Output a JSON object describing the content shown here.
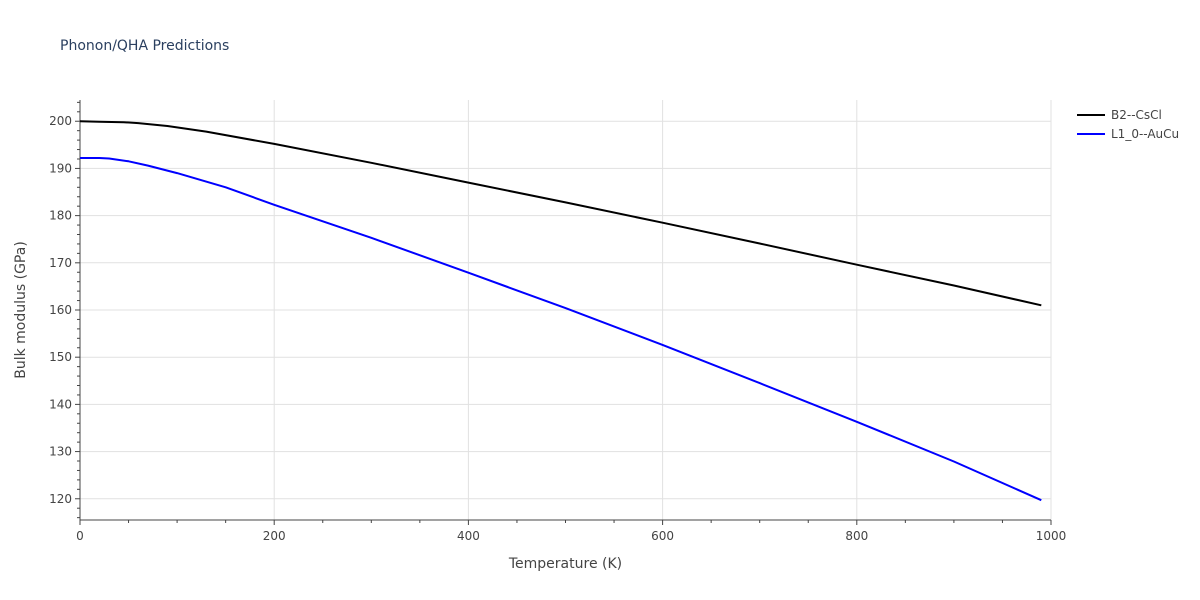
{
  "chart_data": {
    "type": "line",
    "title": "Phonon/QHA Predictions",
    "xlabel": "Temperature (K)",
    "ylabel": "Bulk modulus (GPa)",
    "xlim": [
      0,
      1000
    ],
    "ylim": [
      115.5,
      204.5
    ],
    "xticks": [
      0,
      200,
      400,
      600,
      800,
      1000
    ],
    "yticks": [
      120,
      130,
      140,
      150,
      160,
      170,
      180,
      190,
      200
    ],
    "grid": true,
    "legend_position": "top-right",
    "series": [
      {
        "name": "B2--CsCl",
        "color": "#000000",
        "x": [
          0,
          20,
          45,
          60,
          90,
          130,
          200,
          300,
          400,
          500,
          600,
          700,
          800,
          900,
          990
        ],
        "y": [
          200.0,
          199.9,
          199.8,
          199.6,
          199.0,
          197.8,
          195.2,
          191.2,
          187.0,
          182.8,
          178.5,
          174.1,
          169.6,
          165.2,
          161.0
        ]
      },
      {
        "name": "L1_0--AuCu",
        "color": "#0000ff",
        "x": [
          0,
          20,
          30,
          50,
          70,
          100,
          150,
          200,
          300,
          400,
          500,
          600,
          700,
          800,
          900,
          990
        ],
        "y": [
          192.2,
          192.2,
          192.1,
          191.5,
          190.6,
          189.0,
          186.0,
          182.3,
          175.3,
          167.9,
          160.4,
          152.6,
          144.5,
          136.3,
          127.9,
          119.7
        ]
      }
    ]
  }
}
